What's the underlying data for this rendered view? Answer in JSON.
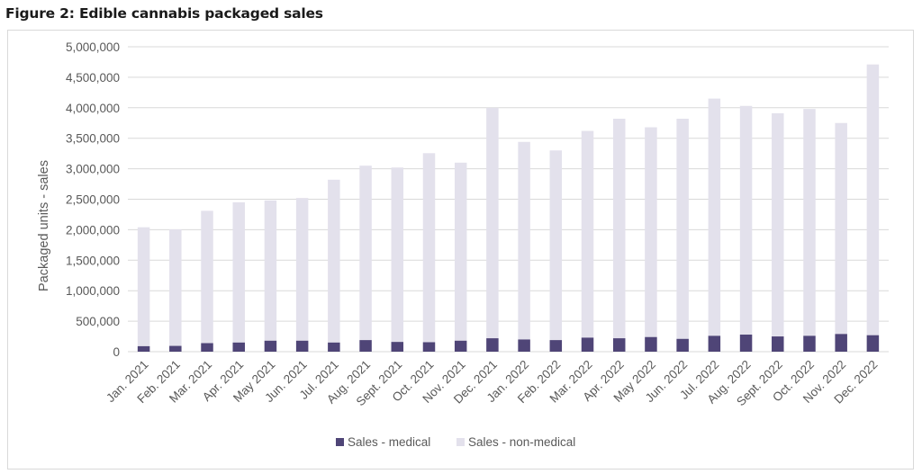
{
  "figure_title": "Figure 2: Edible cannabis packaged sales",
  "colors": {
    "medical": "#4f4577",
    "non_medical": "#e3e1ec",
    "grid": "#d9d9d9",
    "axis_text": "#595959"
  },
  "chart_data": {
    "type": "bar",
    "stacked": true,
    "title": "",
    "xlabel": "",
    "ylabel": "Packaged units - sales",
    "ylim": [
      0,
      5000000
    ],
    "ytick_step": 500000,
    "yticks": [
      "0",
      "500,000",
      "1,000,000",
      "1,500,000",
      "2,000,000",
      "2,500,000",
      "3,000,000",
      "3,500,000",
      "4,000,000",
      "4,500,000",
      "5,000,000"
    ],
    "grid": true,
    "legend_position": "bottom",
    "categories": [
      "Jan. 2021",
      "Feb. 2021",
      "Mar. 2021",
      "Apr. 2021",
      "May 2021",
      "Jun. 2021",
      "Jul. 2021",
      "Aug. 2021",
      "Sept. 2021",
      "Oct. 2021",
      "Nov. 2021",
      "Dec. 2021",
      "Jan. 2022",
      "Feb. 2022",
      "Mar. 2022",
      "Apr. 2022",
      "May 2022",
      "Jun. 2022",
      "Jul. 2022",
      "Aug. 2022",
      "Sept. 2022",
      "Oct. 2022",
      "Nov. 2022",
      "Dec. 2022"
    ],
    "series": [
      {
        "name": "Sales - medical",
        "values": [
          90000,
          95000,
          140000,
          150000,
          180000,
          180000,
          150000,
          190000,
          160000,
          155000,
          180000,
          220000,
          200000,
          190000,
          230000,
          220000,
          240000,
          210000,
          260000,
          280000,
          250000,
          260000,
          290000,
          270000
        ]
      },
      {
        "name": "Sales - non-medical",
        "values": [
          1950000,
          1910000,
          2170000,
          2300000,
          2300000,
          2340000,
          2670000,
          2860000,
          2860000,
          3100000,
          2920000,
          3780000,
          3240000,
          3110000,
          3390000,
          3600000,
          3440000,
          3610000,
          3890000,
          3750000,
          3660000,
          3720000,
          3460000,
          4440000
        ]
      }
    ]
  }
}
